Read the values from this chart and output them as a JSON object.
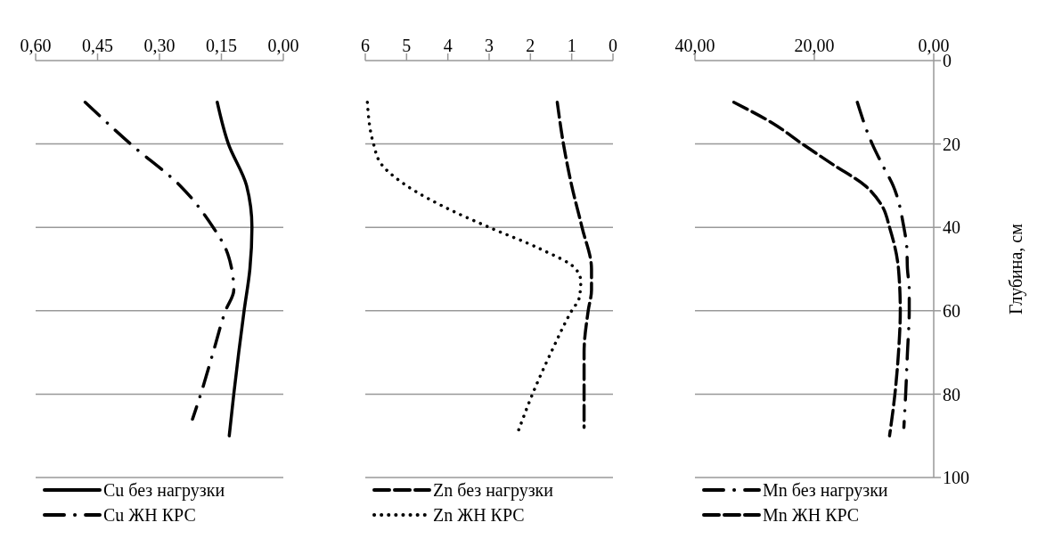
{
  "chart_data": [
    {
      "type": "line",
      "xlim": [
        0.6,
        0
      ],
      "xticks": [
        {
          "value": 0.6,
          "label": "0,60"
        },
        {
          "value": 0.45,
          "label": "0,45"
        },
        {
          "value": 0.3,
          "label": "0,30"
        },
        {
          "value": 0.15,
          "label": "0,15"
        },
        {
          "value": 0,
          "label": "0,00"
        }
      ],
      "ylim": [
        100,
        0
      ],
      "yticks": [
        0,
        20,
        40,
        60,
        80,
        100
      ],
      "tick_labels": "x",
      "grid": "y",
      "legend": "bottom",
      "marker": "none",
      "series": [
        {
          "name": "Cu без нагрузки",
          "color": "#000000",
          "line_style": "solid",
          "x": [
            0.16,
            0.133,
            0.089,
            0.076,
            0.081,
            0.095,
            0.108,
            0.12,
            0.131
          ],
          "values": [
            10,
            20,
            30,
            40,
            50,
            60,
            70,
            80,
            90
          ]
        },
        {
          "name": "Cu ЖН КРС",
          "color": "#000000",
          "line_style": "dashdot",
          "x": [
            0.48,
            0.37,
            0.25,
            0.17,
            0.14,
            0.125,
            0.12,
            0.14,
            0.17,
            0.2,
            0.22
          ],
          "values": [
            10,
            20,
            30,
            40,
            45,
            50,
            55,
            60,
            70,
            80,
            86
          ]
        }
      ]
    },
    {
      "type": "line",
      "xlim": [
        6,
        0
      ],
      "xticks": [
        6,
        5,
        4,
        3,
        2,
        1,
        0
      ],
      "ylim": [
        100,
        0
      ],
      "yticks": [
        0,
        20,
        40,
        60,
        80,
        100
      ],
      "tick_labels": "x",
      "grid": "y",
      "legend": "bottom",
      "marker": "none",
      "series": [
        {
          "name": "Zn без нагрузки",
          "color": "#000000",
          "line_style": "dashed",
          "x": [
            1.35,
            1.2,
            1.0,
            0.75,
            0.52,
            0.52,
            0.6,
            0.7,
            0.7,
            0.7
          ],
          "values": [
            10,
            20,
            30,
            40,
            50,
            55,
            60,
            70,
            80,
            88
          ]
        },
        {
          "name": "Zn ЖН КРС",
          "color": "#000000",
          "line_style": "dotted",
          "x": [
            5.95,
            5.8,
            5.6,
            5.0,
            3.9,
            3.0,
            1.8,
            0.9,
            0.78,
            0.82,
            1.0,
            1.5,
            1.95,
            2.3
          ],
          "values": [
            10,
            20,
            25,
            30,
            36,
            40,
            45,
            50,
            53,
            57,
            60,
            70,
            80,
            89
          ]
        }
      ]
    },
    {
      "type": "line",
      "xlim": [
        40,
        0
      ],
      "xticks": [
        {
          "value": 40,
          "label": "40,00"
        },
        {
          "value": 20,
          "label": "20,00"
        },
        {
          "value": 0,
          "label": "0,00"
        }
      ],
      "ylim": [
        100,
        0
      ],
      "yticks": [
        0,
        20,
        40,
        60,
        80,
        100
      ],
      "ylabel": "Глубина, см",
      "grid": "y",
      "legend": "bottom",
      "marker": "none",
      "series": [
        {
          "name": "Mn без нагрузки",
          "color": "#000000",
          "line_style": "dashdot",
          "x": [
            12.8,
            10.3,
            8.6,
            6.8,
            5.0,
            4.5,
            4.4,
            4.1,
            4.1,
            4.4,
            4.7,
            5.0
          ],
          "values": [
            10,
            20,
            25,
            30,
            40,
            45,
            50,
            55,
            60,
            70,
            80,
            88
          ]
        },
        {
          "name": "Mn ЖН КРС",
          "color": "#000000",
          "line_style": "dashed",
          "x": [
            33.5,
            27,
            22,
            16.8,
            11.5,
            8.6,
            7.4,
            5.9,
            5.6,
            5.9,
            6.5,
            7.4
          ],
          "values": [
            10,
            15,
            20,
            25,
            30,
            35,
            40,
            50,
            60,
            70,
            80,
            90
          ]
        }
      ]
    }
  ]
}
